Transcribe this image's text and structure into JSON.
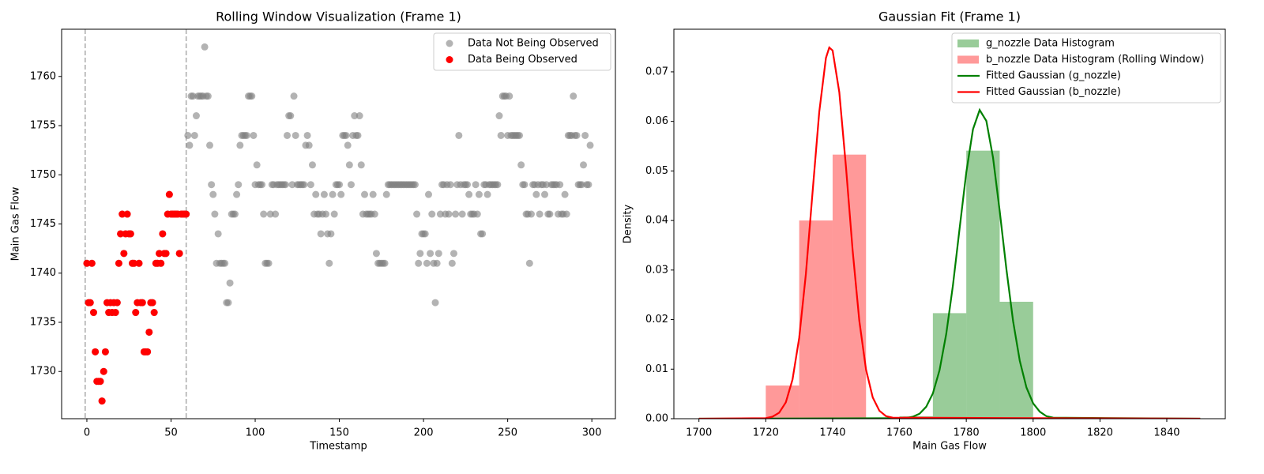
{
  "chart_data": [
    {
      "type": "scatter",
      "title": "Rolling Window Visualization (Frame 1)",
      "x_label": "Timestamp",
      "y_label": "Main Gas Flow",
      "xlim": [
        -15,
        314
      ],
      "ylim": [
        1725.2,
        1764.8
      ],
      "xticks": [
        0,
        50,
        100,
        150,
        200,
        250,
        300
      ],
      "yticks": [
        1730,
        1735,
        1740,
        1745,
        1750,
        1755,
        1760
      ],
      "vlines": [
        -1,
        59
      ],
      "vline_color": "#aaaaaa",
      "legend": "upper right",
      "series": [
        {
          "name": "Data Not Being Observed",
          "color": "#808080",
          "opacity": 0.6,
          "x": [
            0,
            1,
            2,
            3,
            4,
            5,
            6,
            7,
            8,
            9,
            10,
            11,
            12,
            13,
            14,
            15,
            16,
            17,
            18,
            19,
            20,
            21,
            22,
            23,
            24,
            25,
            26,
            27,
            28,
            29,
            30,
            31,
            32,
            33,
            34,
            35,
            36,
            37,
            38,
            39,
            40,
            41,
            42,
            43,
            44,
            45,
            46,
            47,
            48,
            49,
            50,
            51,
            52,
            53,
            54,
            55,
            56,
            57,
            58,
            59,
            60,
            61,
            62,
            63,
            64,
            65,
            66,
            67,
            68,
            69,
            70,
            71,
            72,
            73,
            74,
            75,
            76,
            77,
            78,
            79,
            80,
            81,
            82,
            83,
            84,
            85,
            86,
            87,
            88,
            89,
            90,
            91,
            92,
            93,
            94,
            95,
            96,
            97,
            98,
            99,
            100,
            101,
            102,
            103,
            104,
            105,
            106,
            107,
            108,
            109,
            110,
            111,
            112,
            113,
            114,
            115,
            116,
            117,
            118,
            119,
            120,
            121,
            122,
            123,
            124,
            125,
            126,
            127,
            128,
            129,
            130,
            131,
            132,
            133,
            134,
            135,
            136,
            137,
            138,
            139,
            140,
            141,
            142,
            143,
            144,
            145,
            146,
            147,
            148,
            149,
            150,
            151,
            152,
            153,
            154,
            155,
            156,
            157,
            158,
            159,
            160,
            161,
            162,
            163,
            164,
            165,
            166,
            167,
            168,
            169,
            170,
            171,
            172,
            173,
            174,
            175,
            176,
            177,
            178,
            179,
            180,
            181,
            182,
            183,
            184,
            185,
            186,
            187,
            188,
            189,
            190,
            191,
            192,
            193,
            194,
            195,
            196,
            197,
            198,
            199,
            200,
            201,
            202,
            203,
            204,
            205,
            206,
            207,
            208,
            209,
            210,
            211,
            212,
            213,
            214,
            215,
            216,
            217,
            218,
            219,
            220,
            221,
            222,
            223,
            224,
            225,
            226,
            227,
            228,
            229,
            230,
            231,
            232,
            233,
            234,
            235,
            236,
            237,
            238,
            239,
            240,
            241,
            242,
            243,
            244,
            245,
            246,
            247,
            248,
            249,
            250,
            251,
            252,
            253,
            254,
            255,
            256,
            257,
            258,
            259,
            260,
            261,
            262,
            263,
            264,
            265,
            266,
            267,
            268,
            269,
            270,
            271,
            272,
            273,
            274,
            275,
            276,
            277,
            278,
            279,
            280,
            281,
            282,
            283,
            284,
            285,
            286,
            287,
            288,
            289,
            290,
            291,
            292,
            293,
            294,
            295,
            296,
            297,
            298,
            299
          ],
          "values": [
            1741,
            1737,
            1737,
            1741,
            1736,
            1732,
            1729,
            1729,
            1729,
            1727,
            1730,
            1732,
            1737,
            1736,
            1737,
            1736,
            1737,
            1736,
            1737,
            1741,
            1744,
            1746,
            1742,
            1744,
            1746,
            1744,
            1744,
            1741,
            1741,
            1736,
            1737,
            1741,
            1737,
            1737,
            1732,
            1732,
            1732,
            1734,
            1737,
            1737,
            1736,
            1741,
            1741,
            1742,
            1741,
            1744,
            1742,
            1742,
            1746,
            1748,
            1746,
            1746,
            1746,
            1746,
            1746,
            1742,
            1746,
            1746,
            1746,
            1746,
            1754,
            1753,
            1758,
            1758,
            1754,
            1756,
            1758,
            1758,
            1758,
            1758,
            1763,
            1758,
            1758,
            1753,
            1749,
            1748,
            1746,
            1741,
            1744,
            1741,
            1741,
            1741,
            1741,
            1737,
            1737,
            1739,
            1746,
            1746,
            1746,
            1748,
            1749,
            1753,
            1754,
            1754,
            1754,
            1754,
            1758,
            1758,
            1758,
            1754,
            1749,
            1751,
            1749,
            1749,
            1749,
            1746,
            1741,
            1741,
            1741,
            1746,
            1749,
            1749,
            1746,
            1749,
            1749,
            1749,
            1749,
            1749,
            1749,
            1754,
            1756,
            1756,
            1749,
            1758,
            1754,
            1749,
            1749,
            1749,
            1749,
            1749,
            1753,
            1754,
            1753,
            1749,
            1751,
            1746,
            1748,
            1746,
            1746,
            1744,
            1746,
            1748,
            1746,
            1744,
            1741,
            1744,
            1748,
            1746,
            1749,
            1749,
            1749,
            1748,
            1754,
            1754,
            1754,
            1753,
            1751,
            1749,
            1754,
            1756,
            1754,
            1754,
            1756,
            1751,
            1746,
            1748,
            1746,
            1746,
            1746,
            1746,
            1748,
            1746,
            1742,
            1741,
            1741,
            1741,
            1741,
            1741,
            1748,
            1749,
            1749,
            1749,
            1749,
            1749,
            1749,
            1749,
            1749,
            1749,
            1749,
            1749,
            1749,
            1749,
            1749,
            1749,
            1749,
            1749,
            1746,
            1741,
            1742,
            1744,
            1744,
            1744,
            1741,
            1748,
            1742,
            1746,
            1741,
            1737,
            1741,
            1742,
            1746,
            1749,
            1749,
            1746,
            1749,
            1746,
            1749,
            1741,
            1742,
            1746,
            1749,
            1754,
            1749,
            1746,
            1749,
            1749,
            1749,
            1748,
            1746,
            1746,
            1746,
            1749,
            1746,
            1748,
            1744,
            1744,
            1749,
            1749,
            1748,
            1749,
            1749,
            1749,
            1749,
            1749,
            1749,
            1756,
            1754,
            1758,
            1758,
            1758,
            1754,
            1758,
            1754,
            1754,
            1754,
            1754,
            1754,
            1754,
            1751,
            1749,
            1749,
            1746,
            1746,
            1741,
            1746,
            1749,
            1749,
            1748,
            1749,
            1746,
            1749,
            1749,
            1748,
            1749,
            1746,
            1746,
            1749,
            1749,
            1749,
            1749,
            1746,
            1749,
            1746,
            1746,
            1748,
            1746,
            1754,
            1754,
            1754,
            1758,
            1754,
            1754,
            1749,
            1749,
            1749,
            1751,
            1754,
            1749,
            1749,
            1753
          ]
        },
        {
          "name": "Data Being Observed",
          "color": "#ff0000",
          "opacity": 1,
          "x": [
            0,
            1,
            2,
            3,
            4,
            5,
            6,
            7,
            8,
            9,
            10,
            11,
            12,
            13,
            14,
            15,
            16,
            17,
            18,
            19,
            20,
            21,
            22,
            23,
            24,
            25,
            26,
            27,
            28,
            29,
            30,
            31,
            32,
            33,
            34,
            35,
            36,
            37,
            38,
            39,
            40,
            41,
            42,
            43,
            44,
            45,
            46,
            47,
            48,
            49,
            50,
            51,
            52,
            53,
            54,
            55,
            56,
            57,
            58,
            59
          ],
          "values": [
            1741,
            1737,
            1737,
            1741,
            1736,
            1732,
            1729,
            1729,
            1729,
            1727,
            1730,
            1732,
            1737,
            1736,
            1737,
            1736,
            1737,
            1736,
            1737,
            1741,
            1744,
            1746,
            1742,
            1744,
            1746,
            1744,
            1744,
            1741,
            1741,
            1736,
            1737,
            1741,
            1737,
            1737,
            1732,
            1732,
            1732,
            1734,
            1737,
            1737,
            1736,
            1741,
            1741,
            1742,
            1741,
            1744,
            1742,
            1742,
            1746,
            1748,
            1746,
            1746,
            1746,
            1746,
            1746,
            1742,
            1746,
            1746,
            1746,
            1746
          ]
        }
      ]
    },
    {
      "type": "histogram",
      "title": "Gaussian Fit (Frame 1)",
      "x_label": "Main Gas Flow",
      "y_label": "Density",
      "xlim": [
        1692.5,
        1857.5
      ],
      "ylim": [
        0,
        0.0786
      ],
      "xticks": [
        1700,
        1720,
        1740,
        1760,
        1780,
        1800,
        1820,
        1840
      ],
      "yticks": [
        {
          "value": 0,
          "label": "0.00"
        },
        {
          "value": 0.01,
          "label": "0.01"
        },
        {
          "value": 0.02,
          "label": "0.02"
        },
        {
          "value": 0.03,
          "label": "0.03"
        },
        {
          "value": 0.04,
          "label": "0.04"
        },
        {
          "value": 0.05,
          "label": "0.05"
        },
        {
          "value": 0.06,
          "label": "0.06"
        },
        {
          "value": 0.07,
          "label": "0.07"
        }
      ],
      "legend": "upper right",
      "series": [
        {
          "name": "g_nozzle Data Histogram",
          "type": "histogram",
          "color": "#008000",
          "opacity": 0.4,
          "bins": [
            1760,
            1770,
            1780,
            1790,
            1800
          ],
          "values": [
            0.0005,
            0.0213,
            0.0541,
            0.0236
          ]
        },
        {
          "name": "b_nozzle Data Histogram (Rolling Window)",
          "type": "histogram",
          "color": "#ff0000",
          "opacity": 0.4,
          "bins": [
            1720,
            1730,
            1740,
            1750
          ],
          "values": [
            0.0067,
            0.04,
            0.0533
          ]
        },
        {
          "name": "Fitted Gaussian (g_nozzle)",
          "type": "line",
          "color": "#008000",
          "x": [
            1700,
            1762,
            1764,
            1766,
            1768,
            1770,
            1772,
            1774,
            1776,
            1778,
            1780,
            1782,
            1784,
            1786,
            1788,
            1790,
            1792,
            1794,
            1796,
            1798,
            1800,
            1802,
            1804,
            1806,
            1850
          ],
          "values": [
            0,
            0.0001,
            0.0004,
            0.001,
            0.0024,
            0.0051,
            0.0098,
            0.0171,
            0.0269,
            0.0384,
            0.0497,
            0.0584,
            0.0623,
            0.0601,
            0.0527,
            0.0419,
            0.0302,
            0.0197,
            0.0117,
            0.0063,
            0.0031,
            0.0014,
            0.0005,
            0.0002,
            0
          ]
        },
        {
          "name": "Fitted Gaussian (b_nozzle)",
          "type": "line",
          "color": "#ff0000",
          "x": [
            1700,
            1720,
            1722,
            1724,
            1726,
            1728,
            1730,
            1732,
            1734,
            1736,
            1738,
            1739,
            1740,
            1742,
            1744,
            1746,
            1748,
            1750,
            1752,
            1754,
            1756,
            1758,
            1850
          ],
          "values": [
            0,
            0.0001,
            0.0004,
            0.0012,
            0.0033,
            0.0079,
            0.0163,
            0.0292,
            0.0457,
            0.0619,
            0.0728,
            0.0749,
            0.0743,
            0.0659,
            0.0508,
            0.0339,
            0.0197,
            0.0099,
            0.0043,
            0.0016,
            0.0005,
            0.0002,
            0
          ]
        }
      ]
    }
  ]
}
